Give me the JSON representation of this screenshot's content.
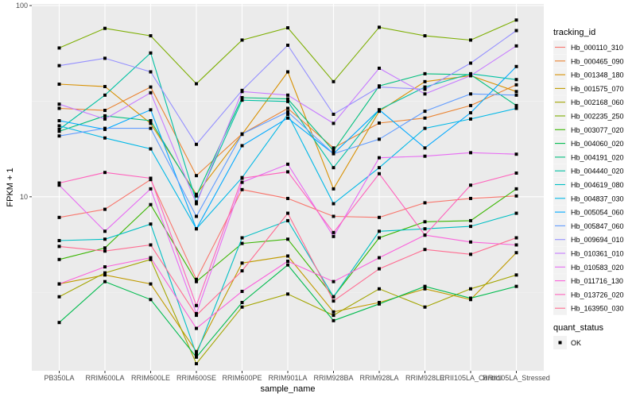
{
  "chart_data": {
    "type": "line",
    "title": "",
    "xlabel": "sample_name",
    "ylabel": "FPKM + 1",
    "yscale": "log10",
    "ylim": [
      1.23,
      100
    ],
    "yticks": [
      10,
      100
    ],
    "ytick_labels": [
      "10",
      "100"
    ],
    "grid": true,
    "categories": [
      "PB350LA",
      "RRIM600LA",
      "RRIM600LE",
      "RRIM600SE",
      "RRIM600PE",
      "RRIM901LA",
      "RRIM928BA",
      "RRIM928LA",
      "RRIM928LE",
      "RRII105LA_Control",
      "RRII105LA_Stressed"
    ],
    "legend": {
      "position": "right",
      "color_title": "tracking_id",
      "shape_title": "quant_status",
      "shape_entries": [
        "OK"
      ]
    },
    "series": [
      {
        "name": "Hb_000110_310",
        "color": "#F8766D",
        "values": [
          7.8,
          8.6,
          12.3,
          3.7,
          10.9,
          9.8,
          7.9,
          7.8,
          9.3,
          9.8,
          10.1
        ]
      },
      {
        "name": "Hb_000465_090",
        "color": "#EA8331",
        "values": [
          29.0,
          28.3,
          37.5,
          12.9,
          21.3,
          29.0,
          18.0,
          24.3,
          25.8,
          30.0,
          38.5
        ]
      },
      {
        "name": "Hb_001348_180",
        "color": "#D89000",
        "values": [
          38.8,
          37.7,
          24.2,
          10.3,
          21.2,
          45.0,
          11.0,
          28.0,
          40.0,
          43.0,
          35.5
        ]
      },
      {
        "name": "Hb_001575_070",
        "color": "#C09B00",
        "values": [
          3.5,
          3.9,
          3.5,
          1.55,
          4.5,
          4.9,
          2.5,
          2.8,
          3.3,
          2.9,
          5.1
        ]
      },
      {
        "name": "Hb_002168_060",
        "color": "#A3A500",
        "values": [
          3.0,
          4.0,
          4.7,
          1.34,
          2.65,
          3.1,
          2.4,
          3.3,
          2.65,
          3.3,
          3.9
        ]
      },
      {
        "name": "Hb_002235_250",
        "color": "#7CAE00",
        "values": [
          60.0,
          76.0,
          69.5,
          39.0,
          66.0,
          76.5,
          40.0,
          77.0,
          69.5,
          66.0,
          84.0
        ]
      },
      {
        "name": "Hb_003077_020",
        "color": "#39B600",
        "values": [
          4.7,
          5.4,
          9.1,
          3.6,
          5.7,
          6.0,
          3.0,
          6.1,
          7.4,
          7.5,
          11.0
        ]
      },
      {
        "name": "Hb_004060_020",
        "color": "#00BB4E",
        "values": [
          2.2,
          3.6,
          2.9,
          1.45,
          2.8,
          4.4,
          2.25,
          2.75,
          3.4,
          2.95,
          3.4
        ]
      },
      {
        "name": "Hb_004191_020",
        "color": "#00BF7D",
        "values": [
          22.0,
          26.5,
          25.0,
          10.1,
          33.0,
          32.5,
          17.4,
          38.0,
          44.0,
          43.5,
          30.0
        ]
      },
      {
        "name": "Hb_004440_020",
        "color": "#00C1A3",
        "values": [
          22.5,
          34.0,
          56.5,
          9.4,
          32.0,
          31.5,
          14.2,
          28.5,
          37.5,
          44.0,
          41.0
        ]
      },
      {
        "name": "Hb_004619_080",
        "color": "#00BFC4",
        "values": [
          5.9,
          6.0,
          7.2,
          1.5,
          6.1,
          7.5,
          3.0,
          6.6,
          6.8,
          7.0,
          8.2
        ]
      },
      {
        "name": "Hb_004837_030",
        "color": "#00B8E7",
        "values": [
          23.5,
          20.3,
          17.8,
          6.8,
          12.6,
          27.0,
          9.2,
          14.2,
          22.8,
          25.5,
          29.0
        ]
      },
      {
        "name": "Hb_005054_060",
        "color": "#00A9FF",
        "values": [
          25.0,
          22.5,
          28.5,
          6.8,
          18.5,
          25.8,
          16.8,
          28.5,
          18.0,
          27.5,
          48.0
        ]
      },
      {
        "name": "Hb_005847_060",
        "color": "#619CFF",
        "values": [
          20.8,
          22.8,
          22.8,
          7.9,
          21.3,
          27.8,
          16.8,
          20.0,
          28.0,
          34.5,
          34.0
        ]
      },
      {
        "name": "Hb_009694_010",
        "color": "#9590FF",
        "values": [
          48.5,
          53.0,
          45.0,
          18.8,
          36.0,
          62.0,
          27.0,
          37.5,
          36.5,
          50.0,
          74.0
        ]
      },
      {
        "name": "Hb_010361_010",
        "color": "#C77CFF",
        "values": [
          30.5,
          25.5,
          35.0,
          9.2,
          35.5,
          34.0,
          24.2,
          47.0,
          34.5,
          43.0,
          61.5
        ]
      },
      {
        "name": "Hb_010583_020",
        "color": "#E76BF3",
        "values": [
          11.5,
          6.6,
          11.0,
          2.45,
          11.9,
          14.8,
          6.2,
          16.0,
          16.3,
          17.0,
          16.7
        ]
      },
      {
        "name": "Hb_011716_130",
        "color": "#FA62DB",
        "values": [
          3.5,
          4.3,
          4.8,
          2.05,
          3.2,
          4.6,
          3.6,
          4.8,
          6.3,
          5.8,
          5.6
        ]
      },
      {
        "name": "Hb_013726_020",
        "color": "#FF62BC",
        "values": [
          11.8,
          13.4,
          12.5,
          2.7,
          12.5,
          13.5,
          6.5,
          13.2,
          6.3,
          11.5,
          13.3
        ]
      },
      {
        "name": "Hb_163950_030",
        "color": "#FF6C91",
        "values": [
          5.5,
          5.2,
          5.6,
          2.4,
          4.1,
          8.2,
          2.85,
          4.2,
          5.3,
          5.0,
          6.1
        ]
      }
    ]
  }
}
